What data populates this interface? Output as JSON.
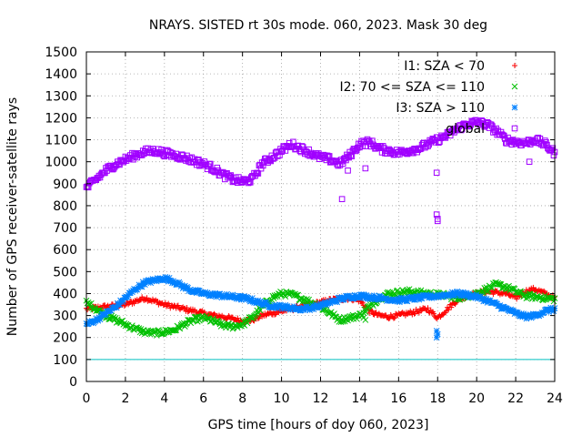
{
  "chart_data": {
    "type": "scatter",
    "title": "NRAYS. SISTED rt 30s mode. 060, 2023. Mask 30 deg",
    "xlabel": "GPS time [hours of doy 060, 2023]",
    "ylabel": "Number of GPS receiver-satellite rays",
    "xlim": [
      0,
      24
    ],
    "ylim": [
      0,
      1500
    ],
    "xticks": [
      "0",
      "2",
      "4",
      "6",
      "8",
      "10",
      "12",
      "14",
      "16",
      "18",
      "20",
      "22",
      "24"
    ],
    "yticks": [
      "0",
      "100",
      "200",
      "300",
      "400",
      "500",
      "600",
      "700",
      "800",
      "900",
      "1000",
      "1100",
      "1200",
      "1300",
      "1400",
      "1500"
    ],
    "grid": true,
    "legend_position": "top-right",
    "reference_line": {
      "y": 100,
      "color": "#00c0c0"
    },
    "series": [
      {
        "name": "I1: SZA < 70",
        "marker": "plus",
        "color": "#ff0000",
        "x": [
          0,
          1,
          2,
          2.5,
          3,
          3.5,
          4,
          4.5,
          5,
          5.5,
          6,
          6.5,
          7,
          7.5,
          8,
          8.5,
          9,
          9.5,
          10,
          10.5,
          11,
          11.5,
          12,
          12.5,
          13,
          13.5,
          14,
          14.5,
          15,
          15.5,
          16,
          16.5,
          17,
          17.5,
          18,
          18.5,
          19,
          19.5,
          20,
          20.5,
          21,
          21.5,
          22,
          22.5,
          23,
          23.5,
          24
        ],
        "y": [
          330,
          340,
          350,
          365,
          380,
          365,
          350,
          340,
          330,
          320,
          310,
          300,
          295,
          285,
          275,
          280,
          300,
          310,
          320,
          330,
          340,
          350,
          360,
          370,
          375,
          380,
          370,
          320,
          300,
          295,
          300,
          310,
          320,
          330,
          290,
          330,
          370,
          390,
          400,
          410,
          405,
          400,
          380,
          410,
          420,
          400,
          380
        ]
      },
      {
        "name": "I2: 70 <= SZA <= 110",
        "marker": "cross",
        "color": "#00c000",
        "x": [
          0,
          0.5,
          1,
          1.5,
          2,
          2.5,
          3,
          3.5,
          4,
          4.5,
          5,
          5.5,
          6,
          6.5,
          7,
          7.5,
          8,
          8.5,
          9,
          9.5,
          10,
          10.5,
          11,
          11.5,
          12,
          12.5,
          13,
          13.5,
          14,
          14.5,
          15,
          15.5,
          16,
          16.5,
          17,
          17.5,
          18,
          18.5,
          19,
          19.5,
          20,
          20.5,
          21,
          21.5,
          22,
          22.5,
          23,
          23.5,
          24
        ],
        "y": [
          360,
          330,
          300,
          280,
          260,
          240,
          225,
          220,
          225,
          235,
          260,
          280,
          290,
          275,
          255,
          250,
          260,
          290,
          340,
          380,
          400,
          395,
          380,
          360,
          340,
          310,
          280,
          290,
          300,
          340,
          380,
          400,
          405,
          410,
          405,
          400,
          395,
          390,
          380,
          390,
          400,
          420,
          440,
          430,
          410,
          390,
          385,
          380,
          375
        ]
      },
      {
        "name": "I3: SZA > 110",
        "marker": "star",
        "color": "#0080ff",
        "x": [
          0,
          0.5,
          1,
          1.5,
          2,
          2.5,
          3,
          3.5,
          4,
          4.5,
          5,
          5.5,
          6,
          6.5,
          7,
          7.5,
          8,
          8.5,
          9,
          9.5,
          10,
          10.5,
          11,
          11.5,
          12,
          12.5,
          13,
          13.5,
          14,
          14.5,
          15,
          15.5,
          16,
          16.5,
          17,
          17.5,
          18,
          18.5,
          19,
          19.5,
          20,
          20.5,
          21,
          21.5,
          22,
          22.5,
          23,
          23.5,
          24
        ],
        "y": [
          260,
          280,
          310,
          340,
          380,
          420,
          450,
          460,
          470,
          455,
          430,
          410,
          400,
          395,
          390,
          385,
          380,
          370,
          355,
          345,
          340,
          335,
          330,
          335,
          345,
          360,
          375,
          385,
          390,
          385,
          380,
          375,
          370,
          375,
          380,
          385,
          390,
          395,
          400,
          395,
          385,
          370,
          350,
          330,
          310,
          295,
          300,
          320,
          330
        ]
      },
      {
        "name": "global",
        "marker": "square",
        "color": "#a000ff",
        "x": [
          0,
          0.5,
          1,
          1.5,
          2,
          2.5,
          3,
          3.5,
          4,
          4.5,
          5,
          5.5,
          6,
          6.5,
          7,
          7.5,
          8,
          8.5,
          9,
          9.5,
          10,
          10.5,
          11,
          11.5,
          12,
          12.5,
          13,
          13.5,
          14,
          14.5,
          15,
          15.5,
          16,
          16.5,
          17,
          17.5,
          18,
          18.5,
          19,
          19.5,
          20,
          20.5,
          21,
          21.5,
          22,
          22.5,
          23,
          23.5,
          24
        ],
        "y": [
          880,
          920,
          960,
          990,
          1010,
          1030,
          1045,
          1050,
          1040,
          1030,
          1020,
          1005,
          990,
          970,
          940,
          920,
          910,
          920,
          990,
          1020,
          1050,
          1080,
          1060,
          1040,
          1020,
          1010,
          990,
          1030,
          1080,
          1090,
          1060,
          1050,
          1040,
          1050,
          1060,
          1080,
          1100,
          1120,
          1150,
          1170,
          1180,
          1170,
          1140,
          1100,
          1090,
          1085,
          1100,
          1080,
          1040
        ]
      }
    ],
    "outliers_global": [
      {
        "x": 13.1,
        "y": 830
      },
      {
        "x": 13.4,
        "y": 960
      },
      {
        "x": 14.3,
        "y": 970
      },
      {
        "x": 17.95,
        "y": 950
      },
      {
        "x": 17.95,
        "y": 760
      },
      {
        "x": 18.0,
        "y": 740
      },
      {
        "x": 18.0,
        "y": 730
      },
      {
        "x": 22.7,
        "y": 1000
      }
    ],
    "outliers_i3": [
      {
        "x": 17.95,
        "y": 230
      },
      {
        "x": 18.0,
        "y": 215
      },
      {
        "x": 17.95,
        "y": 200
      }
    ],
    "outliers_i2": [
      {
        "x": 14.2,
        "y": 290
      },
      {
        "x": 14.3,
        "y": 280
      }
    ]
  }
}
